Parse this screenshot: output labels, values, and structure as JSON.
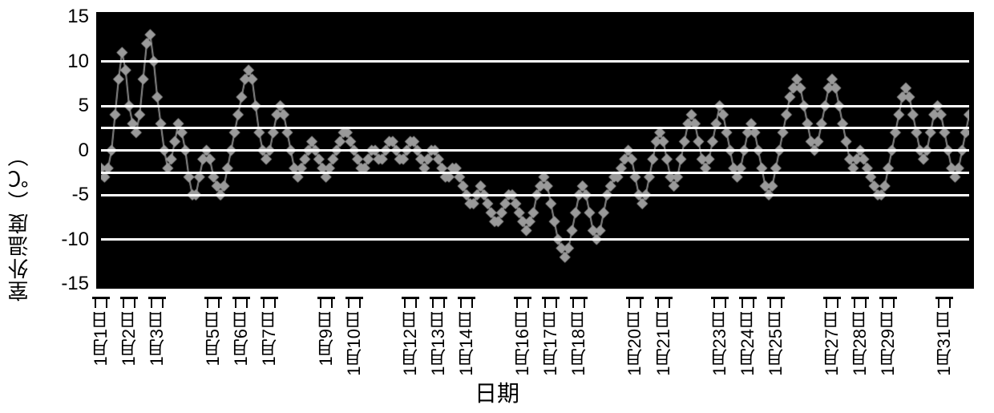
{
  "chart": {
    "type": "line",
    "y_axis_label": "室外温度（℃）",
    "x_axis_label": "日期",
    "background_color": "#000000",
    "grid_color": "#ffffff",
    "border_color": "#000000",
    "series_color": "#9a9a9a",
    "series_secondary_color": "#7a7a7a",
    "marker": "diamond",
    "marker_size": 7,
    "line_width": 2,
    "title_fontsize": 26,
    "tick_fontsize": 24,
    "xtick_fontsize": 22,
    "label_fontsize": 28,
    "ylim": [
      -15,
      15
    ],
    "yticks": [
      -15,
      -10,
      -5,
      0,
      5,
      10,
      15
    ],
    "gridlines_y": [
      -10,
      -5,
      -2.5,
      0,
      2.5,
      5,
      10
    ],
    "xtick_labels": [
      "1月1日",
      "1月2日",
      "1月3日",
      "1月5日",
      "1月6日",
      "1月7日",
      "1月9日",
      "1月10日",
      "1月12日",
      "1月13日",
      "1月14日",
      "1月16日",
      "1月17日",
      "1月18日",
      "1月20日",
      "1月21日",
      "1月23日",
      "1月24日",
      "1月25日",
      "1月27日",
      "1月28日",
      "1月29日",
      "1月31日"
    ],
    "xtick_positions": [
      0,
      8,
      16,
      32,
      40,
      48,
      64,
      72,
      88,
      96,
      104,
      120,
      128,
      136,
      152,
      160,
      176,
      184,
      192,
      208,
      216,
      224,
      240
    ],
    "n_points": 248,
    "data": [
      -2,
      -3,
      -2,
      0,
      4,
      8,
      11,
      9,
      5,
      3,
      2,
      4,
      8,
      12,
      13,
      10,
      6,
      3,
      0,
      -2,
      -1,
      1,
      3,
      2,
      0,
      -3,
      -5,
      -5,
      -3,
      -1,
      0,
      -1,
      -3,
      -4,
      -5,
      -4,
      -2,
      0,
      2,
      4,
      6,
      8,
      9,
      8,
      5,
      2,
      0,
      -1,
      0,
      2,
      4,
      5,
      4,
      2,
      0,
      -2,
      -3,
      -2,
      -1,
      0,
      1,
      0,
      -1,
      -2,
      -3,
      -2,
      -1,
      0,
      1,
      2,
      2,
      1,
      0,
      -1,
      -2,
      -2,
      -1,
      0,
      0,
      -1,
      -1,
      0,
      1,
      1,
      0,
      -1,
      -1,
      0,
      1,
      1,
      0,
      -1,
      -2,
      -1,
      0,
      0,
      -1,
      -2,
      -3,
      -3,
      -2,
      -2,
      -3,
      -4,
      -5,
      -6,
      -6,
      -5,
      -4,
      -5,
      -6,
      -7,
      -8,
      -8,
      -7,
      -6,
      -5,
      -5,
      -6,
      -7,
      -8,
      -9,
      -8,
      -7,
      -5,
      -4,
      -3,
      -4,
      -6,
      -8,
      -10,
      -11,
      -12,
      -11,
      -9,
      -7,
      -5,
      -4,
      -5,
      -7,
      -9,
      -10,
      -9,
      -7,
      -5,
      -4,
      -3,
      -3,
      -2,
      -1,
      0,
      -1,
      -3,
      -5,
      -6,
      -5,
      -3,
      -1,
      1,
      2,
      1,
      -1,
      -3,
      -4,
      -3,
      -1,
      1,
      3,
      4,
      3,
      1,
      -1,
      -2,
      -1,
      1,
      3,
      5,
      4,
      2,
      0,
      -2,
      -3,
      -2,
      0,
      2,
      3,
      2,
      0,
      -2,
      -4,
      -5,
      -4,
      -2,
      0,
      2,
      4,
      6,
      7,
      8,
      7,
      5,
      3,
      1,
      0,
      1,
      3,
      5,
      7,
      8,
      7,
      5,
      3,
      1,
      -1,
      -2,
      -1,
      0,
      -1,
      -2,
      -3,
      -4,
      -5,
      -5,
      -4,
      -2,
      0,
      2,
      4,
      6,
      7,
      6,
      4,
      2,
      0,
      -1,
      0,
      2,
      4,
      5,
      4,
      2,
      0,
      -2,
      -3,
      -2,
      0,
      2,
      4
    ]
  }
}
